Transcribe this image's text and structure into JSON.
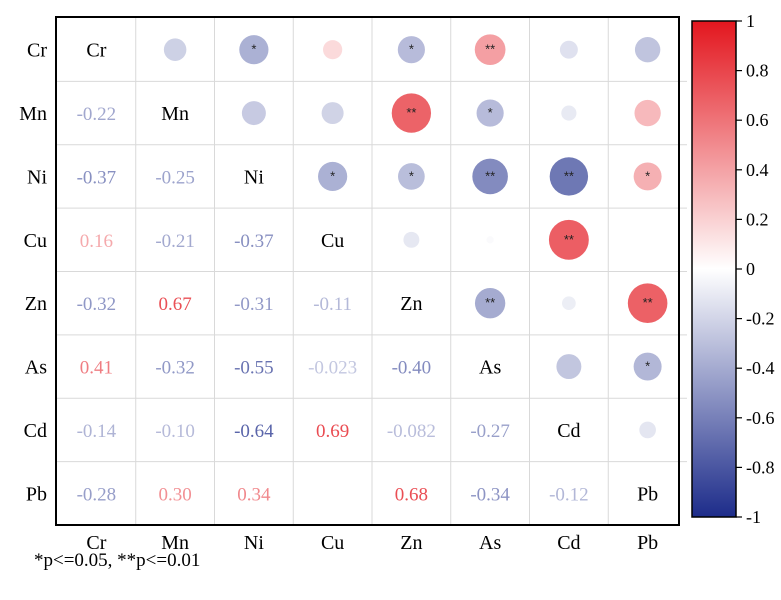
{
  "chart_data": {
    "type": "heatmap",
    "variables": [
      "Cr",
      "Mn",
      "Ni",
      "Cu",
      "Zn",
      "As",
      "Cd",
      "Pb"
    ],
    "lower_triangle_labels": [
      [
        "Mn",
        "Cr",
        "-0.22"
      ],
      [
        "Ni",
        "Cr",
        "-0.37"
      ],
      [
        "Ni",
        "Mn",
        "-0.25"
      ],
      [
        "Cu",
        "Cr",
        "0.16"
      ],
      [
        "Cu",
        "Mn",
        "-0.21"
      ],
      [
        "Cu",
        "Ni",
        "-0.37"
      ],
      [
        "Zn",
        "Cr",
        "-0.32"
      ],
      [
        "Zn",
        "Mn",
        "0.67"
      ],
      [
        "Zn",
        "Ni",
        "-0.31"
      ],
      [
        "Zn",
        "Cu",
        "-0.11"
      ],
      [
        "As",
        "Cr",
        "0.41"
      ],
      [
        "As",
        "Mn",
        "-0.32"
      ],
      [
        "As",
        "Ni",
        "-0.55"
      ],
      [
        "As",
        "Cu",
        "-0.023"
      ],
      [
        "As",
        "Zn",
        "-0.40"
      ],
      [
        "Cd",
        "Cr",
        "-0.14"
      ],
      [
        "Cd",
        "Mn",
        "-0.10"
      ],
      [
        "Cd",
        "Ni",
        "-0.64"
      ],
      [
        "Cd",
        "Cu",
        "0.69"
      ],
      [
        "Cd",
        "Zn",
        "-0.082"
      ],
      [
        "Cd",
        "As",
        "-0.27"
      ],
      [
        "Pb",
        "Cr",
        "-0.28"
      ],
      [
        "Pb",
        "Mn",
        "0.30"
      ],
      [
        "Pb",
        "Ni",
        "0.34"
      ],
      [
        "Pb",
        "Cu",
        "0"
      ],
      [
        "Pb",
        "Zn",
        "0.68"
      ],
      [
        "Pb",
        "As",
        "-0.34"
      ],
      [
        "Pb",
        "Cd",
        "-0.12"
      ]
    ],
    "hidden_values": [
      [
        "Pb",
        "Cu"
      ]
    ],
    "significance_marks": [
      [
        "Cr",
        "Ni",
        "*"
      ],
      [
        "Cr",
        "Zn",
        "*"
      ],
      [
        "Cr",
        "As",
        "**"
      ],
      [
        "Mn",
        "Zn",
        "**"
      ],
      [
        "Mn",
        "As",
        "*"
      ],
      [
        "Ni",
        "Cu",
        "*"
      ],
      [
        "Ni",
        "Zn",
        "*"
      ],
      [
        "Ni",
        "As",
        "**"
      ],
      [
        "Ni",
        "Cd",
        "**"
      ],
      [
        "Ni",
        "Pb",
        "*"
      ],
      [
        "Cu",
        "Cd",
        "**"
      ],
      [
        "Zn",
        "As",
        "**"
      ],
      [
        "Zn",
        "Pb",
        "**"
      ],
      [
        "As",
        "Pb",
        "*"
      ]
    ],
    "colorbar": {
      "range": [
        -1,
        1
      ],
      "ticks": [
        "1",
        "0.8",
        "0.6",
        "0.4",
        "0.2",
        "0",
        "-0.2",
        "-0.4",
        "-0.6",
        "-0.8",
        "-1"
      ],
      "colors": {
        "negative": "#1d2c8a",
        "zero": "#ffffff",
        "positive": "#e3161e"
      }
    },
    "footnote": "*p<=0.05, **p<=0.01"
  }
}
